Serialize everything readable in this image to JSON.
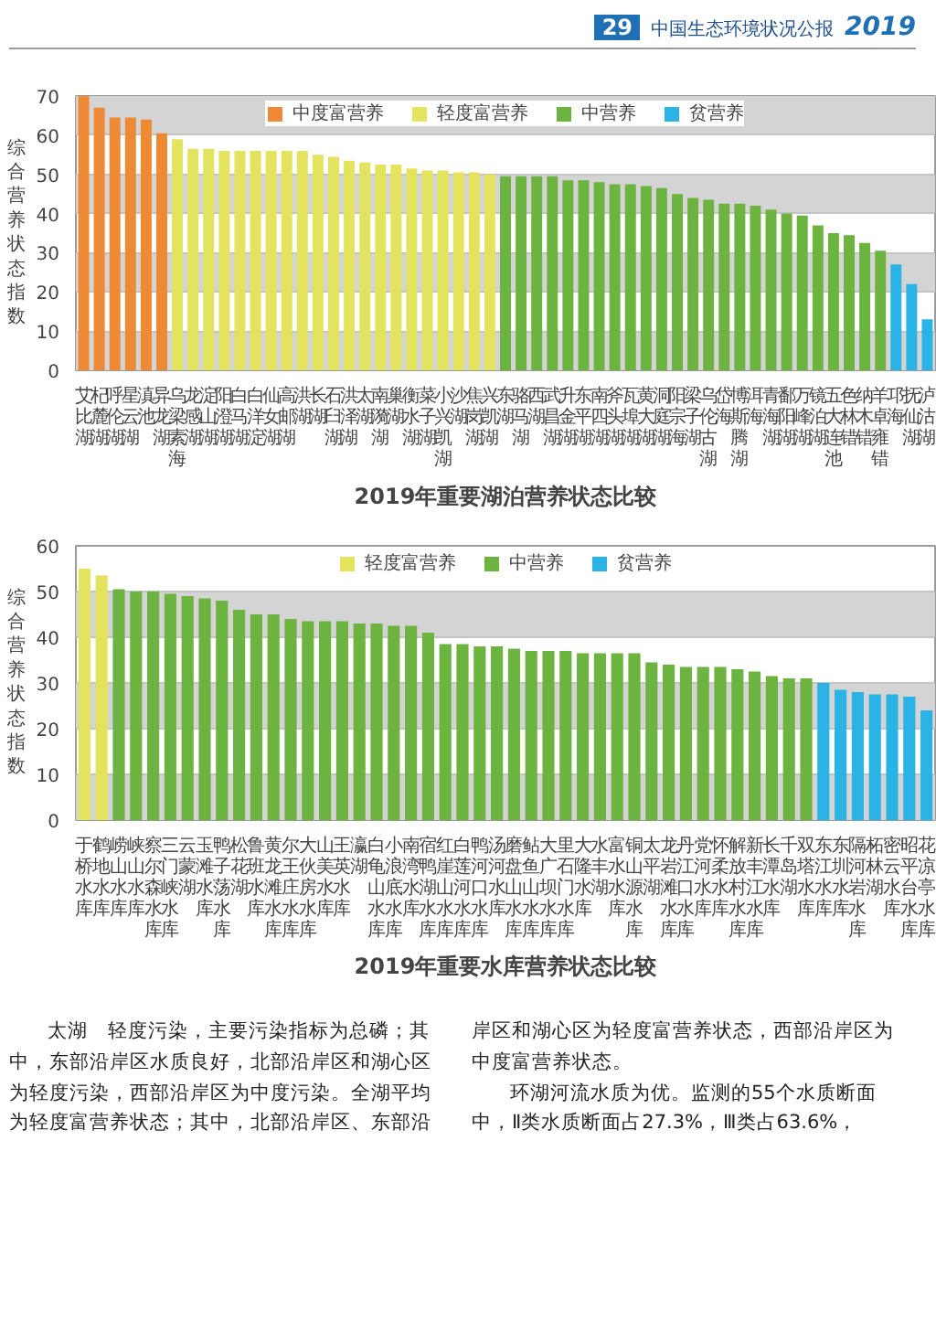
{
  "chart_data": [
    {
      "type": "bar",
      "title": "2019年重要湖泊营养状态比较",
      "ylabel": "综合营养状态指数",
      "annotations": [
        "29",
        "中国生态环境状况公报",
        "2019"
      ],
      "categories": [
        "艾比湖",
        "杞麓湖",
        "呼伦湖",
        "星云湖",
        "滇池",
        "异龙湖",
        "乌梁素海",
        "龙感湖",
        "淀山湖",
        "阳澄湖",
        "白马湖",
        "白洋淀",
        "仙女湖",
        "高邮湖",
        "洪湖",
        "长湖",
        "石臼湖",
        "洪泽湖",
        "太湖",
        "南漪湖",
        "巢湖",
        "衡水湖",
        "菜子湖",
        "小兴凯湖",
        "沙湖",
        "焦岗湖",
        "兴凯湖",
        "东湖",
        "骆马湖",
        "西湖",
        "武昌湖",
        "升金湖",
        "东平湖",
        "南四湖",
        "斧头湖",
        "瓦埠湖",
        "黄大湖",
        "洞庭湖",
        "阳宗海",
        "梁子湖",
        "乌伦古湖",
        "岱海",
        "博斯腾湖",
        "洱海",
        "青海湖",
        "鄱阳湖",
        "万峰湖",
        "镜泊湖",
        "五大连池",
        "色林错",
        "纳木错",
        "羊卓雍错",
        "邛海",
        "抚仙湖",
        "泸沽湖"
      ],
      "series": [
        {
          "name": "中度富营养",
          "color": "#ee8a35",
          "values": [
            70,
            67,
            64.5,
            64.5,
            64,
            60.5,
            null,
            null,
            null,
            null,
            null,
            null,
            null,
            null,
            null,
            null,
            null,
            null,
            null,
            null,
            null,
            null,
            null,
            null,
            null,
            null,
            null,
            null,
            null,
            null,
            null,
            null,
            null,
            null,
            null,
            null,
            null,
            null,
            null,
            null,
            null,
            null,
            null,
            null,
            null,
            null,
            null,
            null,
            null,
            null,
            null,
            null,
            null,
            null,
            null
          ]
        },
        {
          "name": "轻度富营养",
          "color": "#e4e35d",
          "values": [
            null,
            null,
            null,
            null,
            null,
            null,
            59,
            56.5,
            56.5,
            56,
            56,
            56,
            56,
            56,
            56,
            55,
            54.5,
            53.5,
            53,
            52.5,
            52.5,
            51.5,
            51,
            51,
            50.5,
            50.5,
            50,
            null,
            null,
            null,
            null,
            null,
            null,
            null,
            null,
            null,
            null,
            null,
            null,
            null,
            null,
            null,
            null,
            null,
            null,
            null,
            null,
            null,
            null,
            null,
            null,
            null,
            null,
            null,
            null
          ]
        },
        {
          "name": "中营养",
          "color": "#6db33f",
          "values": [
            null,
            null,
            null,
            null,
            null,
            null,
            null,
            null,
            null,
            null,
            null,
            null,
            null,
            null,
            null,
            null,
            null,
            null,
            null,
            null,
            null,
            null,
            null,
            null,
            null,
            null,
            null,
            49.5,
            49.5,
            49.5,
            49.5,
            48.5,
            48.5,
            48,
            47.5,
            47.5,
            47,
            46.5,
            45,
            44,
            43.5,
            42.5,
            42.5,
            42,
            41,
            40,
            39.5,
            37,
            35,
            34.5,
            32.5,
            30.5,
            null,
            null,
            null
          ]
        },
        {
          "name": "贫营养",
          "color": "#2bb3e6",
          "values": [
            null,
            null,
            null,
            null,
            null,
            null,
            null,
            null,
            null,
            null,
            null,
            null,
            null,
            null,
            null,
            null,
            null,
            null,
            null,
            null,
            null,
            null,
            null,
            null,
            null,
            null,
            null,
            null,
            null,
            null,
            null,
            null,
            null,
            null,
            null,
            null,
            null,
            null,
            null,
            null,
            null,
            null,
            null,
            null,
            null,
            null,
            null,
            null,
            null,
            null,
            null,
            null,
            27,
            22,
            13
          ]
        }
      ],
      "ylim": [
        0,
        70
      ],
      "yticks": [
        0,
        10,
        20,
        30,
        40,
        50,
        60,
        70
      ],
      "grid": "y",
      "legend": "top"
    },
    {
      "type": "bar",
      "title": "2019年重要水库营养状态比较",
      "ylabel": "综合营养状态指数",
      "annotations": [
        "太湖　轻度污染，主要污染指标为总磷；其中，东部沿岸区水质良好，北部沿岸区和湖心区为轻度污染，西部沿岸区为中度污染。全湖平均为轻度富营养状态；其中，北部沿岸区、东部沿岸区和湖心区为轻度富营养状态，西部沿岸区为中度富营养状态。",
        "环湖河流水质为优。监测的55个水质断面中，Ⅱ类水质断面占27.3%，Ⅲ类占63.6%，"
      ],
      "categories": [
        "于桥水库",
        "鹤地水库",
        "崂山水库",
        "峡山水库",
        "察尔森水库",
        "三门峡水库",
        "云蒙湖",
        "玉滩水库",
        "鸭子荡水库",
        "松花湖",
        "鲁班水库",
        "黄龙滩水库",
        "尔王庄水库",
        "大伙房水库",
        "山美水库",
        "王英水库",
        "瀛湖",
        "白龟山水库",
        "小浪底水库",
        "南湾水库",
        "宿鸭湖水库",
        "红崖山水库",
        "白莲河水库",
        "鸭河口水库",
        "汤河水库",
        "磨盘山水库",
        "鲇鱼山水库",
        "大广坝水库",
        "里石门水库",
        "大隆水库",
        "水丰湖",
        "富水水库",
        "铜山源水库",
        "太平湖",
        "龙岩滩水库",
        "丹江口水库",
        "党河水库",
        "怀柔水库",
        "解放村水库",
        "新丰江水库",
        "长潭水库",
        "千岛湖",
        "双塔水库",
        "东江水库",
        "东圳水库",
        "隔河岩水库",
        "柘林湖",
        "密云水库",
        "昭平台水库",
        "花凉亭水库"
      ],
      "series": [
        {
          "name": "轻度富营养",
          "color": "#e4e35d",
          "values": [
            55,
            53.5,
            null,
            null,
            null,
            null,
            null,
            null,
            null,
            null,
            null,
            null,
            null,
            null,
            null,
            null,
            null,
            null,
            null,
            null,
            null,
            null,
            null,
            null,
            null,
            null,
            null,
            null,
            null,
            null,
            null,
            null,
            null,
            null,
            null,
            null,
            null,
            null,
            null,
            null,
            null,
            null,
            null,
            null,
            null,
            null,
            null,
            null,
            null,
            null
          ]
        },
        {
          "name": "中营养",
          "color": "#6db33f",
          "values": [
            null,
            null,
            50.5,
            50,
            50,
            49.5,
            49,
            48.5,
            48,
            46,
            45,
            45,
            44,
            43.5,
            43.5,
            43.5,
            43,
            43,
            42.5,
            42.5,
            41,
            38.5,
            38.5,
            38,
            38,
            37.5,
            37,
            37,
            37,
            36.5,
            36.5,
            36.5,
            36.5,
            34.5,
            34,
            33.5,
            33.5,
            33.5,
            33,
            32.5,
            31.5,
            31,
            31,
            null,
            null,
            null,
            null,
            null,
            null,
            null
          ]
        },
        {
          "name": "贫营养",
          "color": "#2bb3e6",
          "values": [
            null,
            null,
            null,
            null,
            null,
            null,
            null,
            null,
            null,
            null,
            null,
            null,
            null,
            null,
            null,
            null,
            null,
            null,
            null,
            null,
            null,
            null,
            null,
            null,
            null,
            null,
            null,
            null,
            null,
            null,
            null,
            null,
            null,
            null,
            null,
            null,
            null,
            null,
            null,
            null,
            null,
            null,
            null,
            30,
            28.5,
            28,
            27.5,
            27.5,
            27,
            24
          ]
        }
      ],
      "ylim": [
        0,
        60
      ],
      "yticks": [
        0,
        10,
        20,
        30,
        40,
        50,
        60
      ],
      "grid": "y",
      "legend": "top"
    }
  ]
}
